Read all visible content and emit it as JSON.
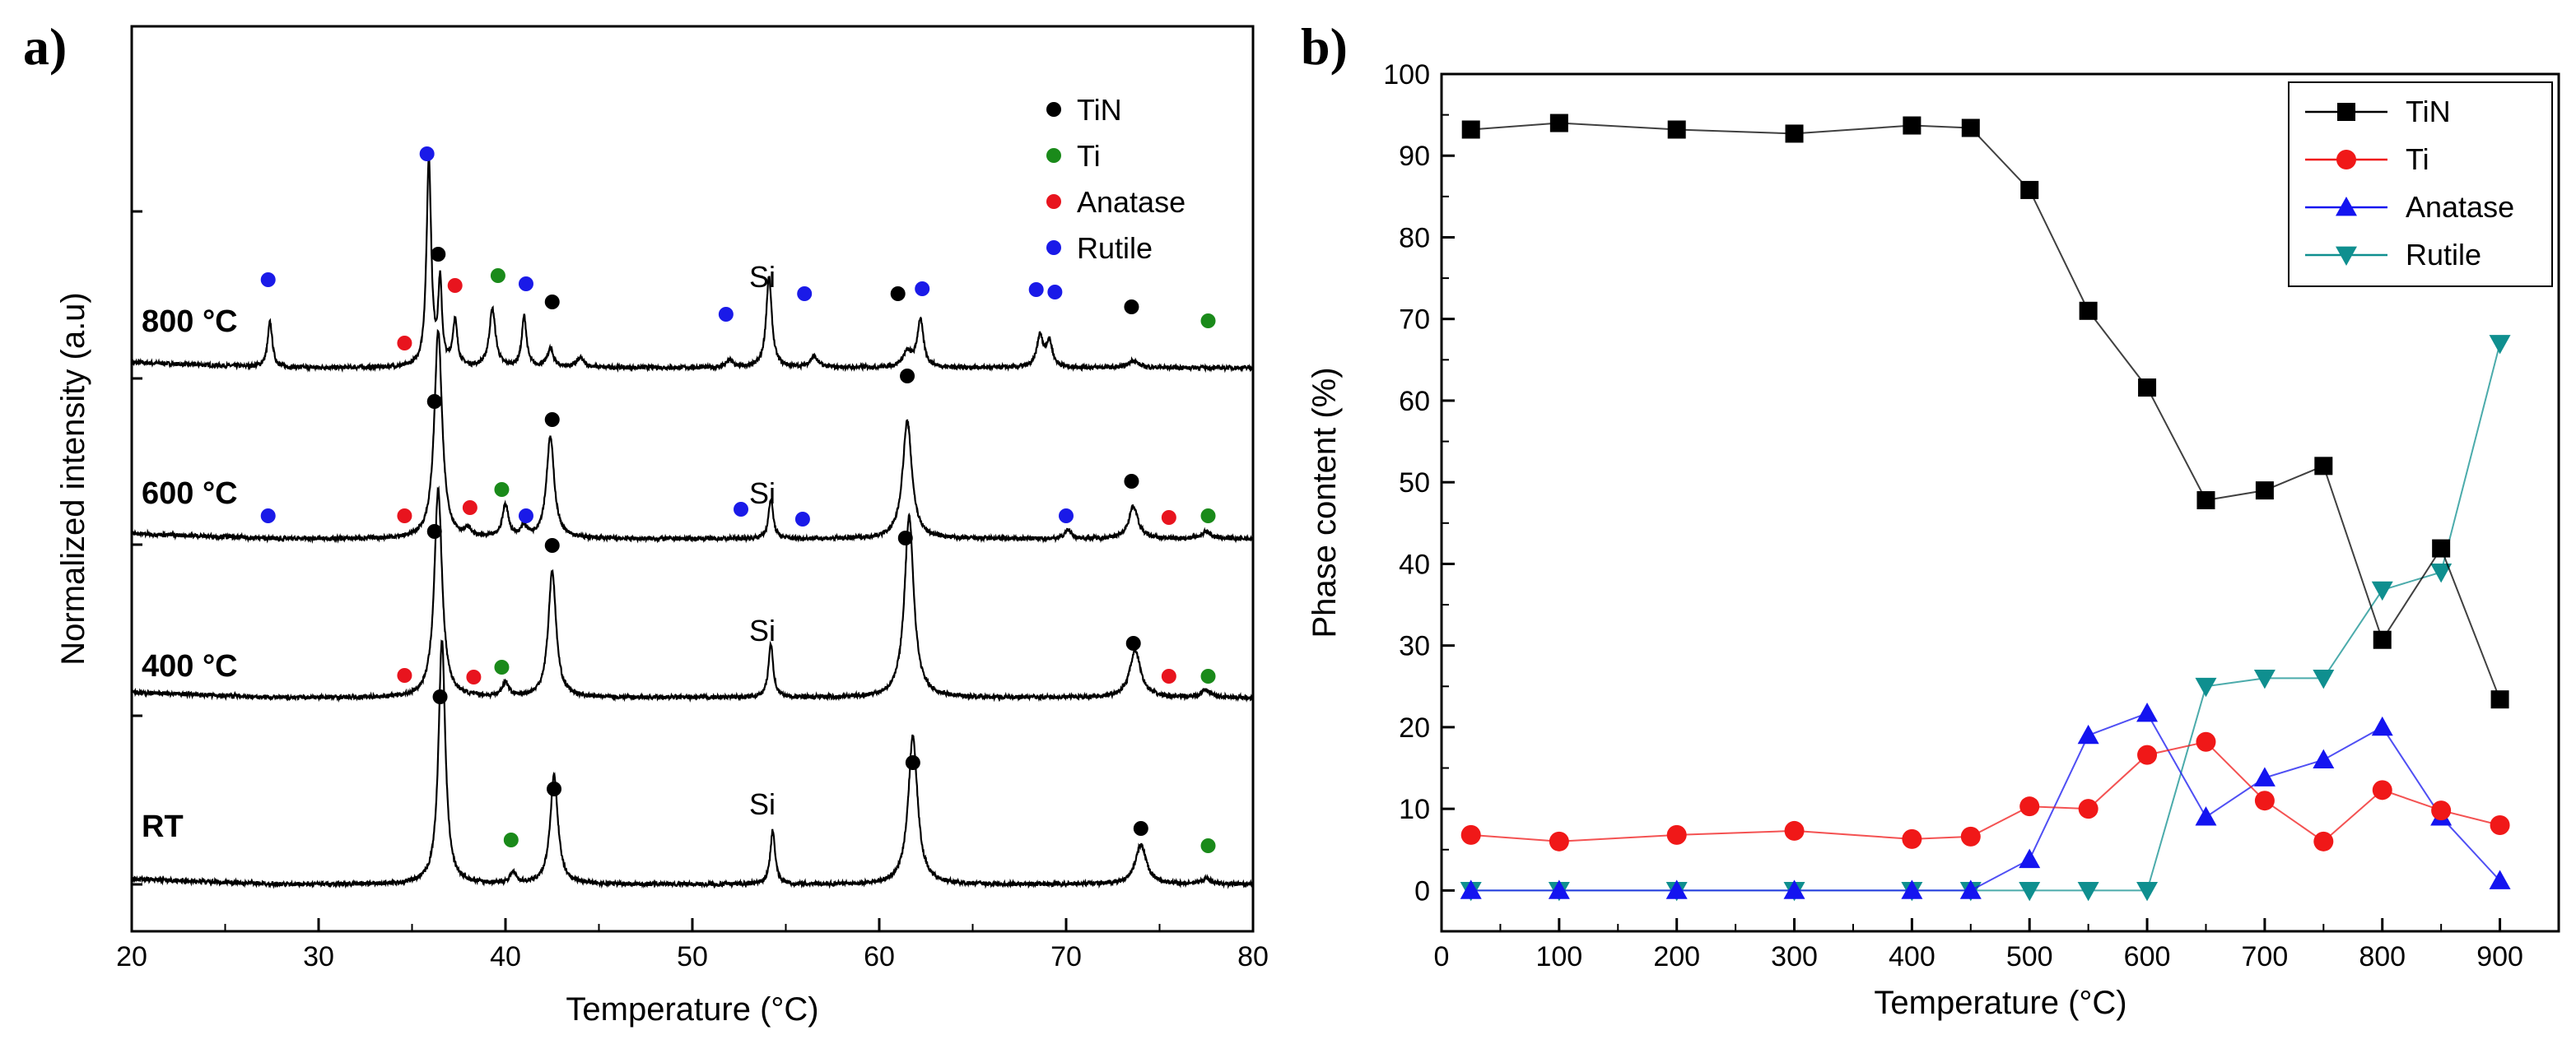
{
  "chart_data": [
    {
      "id": "a",
      "panel_label": "a)",
      "type": "line",
      "subtype": "xrd-pattern",
      "xlabel": "Temperature (°C)",
      "ylabel": "Normalized intensity (a.u)",
      "xlim": [
        20,
        80
      ],
      "xticks": [
        20,
        30,
        40,
        50,
        60,
        70,
        80
      ],
      "legend": {
        "placement": "top-right",
        "entries": [
          {
            "label": "TiN",
            "color": "#000000"
          },
          {
            "label": "Ti",
            "color": "#1a8a1a"
          },
          {
            "label": "Anatase",
            "color": "#e8141e"
          },
          {
            "label": "Rutile",
            "color": "#1a1ae8"
          }
        ]
      },
      "traces": [
        {
          "label": "800 °C",
          "si_label": "Si",
          "peaks": [
            {
              "x": 27.4,
              "h": 0.25,
              "w": 0.15
            },
            {
              "x": 35.9,
              "h": 1.15,
              "w": 0.15
            },
            {
              "x": 36.5,
              "h": 0.45,
              "w": 0.12
            },
            {
              "x": 37.3,
              "h": 0.25,
              "w": 0.15
            },
            {
              "x": 39.3,
              "h": 0.32,
              "w": 0.2
            },
            {
              "x": 41.0,
              "h": 0.28,
              "w": 0.15
            },
            {
              "x": 42.4,
              "h": 0.1,
              "w": 0.2
            },
            {
              "x": 44.0,
              "h": 0.05,
              "w": 0.25
            },
            {
              "x": 52.0,
              "h": 0.04,
              "w": 0.2
            },
            {
              "x": 54.1,
              "h": 0.5,
              "w": 0.18
            },
            {
              "x": 56.5,
              "h": 0.06,
              "w": 0.25
            },
            {
              "x": 61.5,
              "h": 0.08,
              "w": 0.3
            },
            {
              "x": 62.2,
              "h": 0.26,
              "w": 0.2
            },
            {
              "x": 68.6,
              "h": 0.17,
              "w": 0.2
            },
            {
              "x": 69.1,
              "h": 0.14,
              "w": 0.2
            },
            {
              "x": 73.6,
              "h": 0.04,
              "w": 0.3
            }
          ],
          "markers": [
            {
              "x": 27.3,
              "phase": "Rutile"
            },
            {
              "x": 34.6,
              "phase": "Anatase"
            },
            {
              "x": 35.8,
              "phase": "Rutile"
            },
            {
              "x": 36.4,
              "phase": "TiN"
            },
            {
              "x": 37.3,
              "phase": "Anatase"
            },
            {
              "x": 39.6,
              "phase": "Ti"
            },
            {
              "x": 41.1,
              "phase": "Rutile"
            },
            {
              "x": 42.5,
              "phase": "TiN"
            },
            {
              "x": 51.8,
              "phase": "Rutile"
            },
            {
              "x": 56.0,
              "phase": "Rutile"
            },
            {
              "x": 61.0,
              "phase": "TiN"
            },
            {
              "x": 62.3,
              "phase": "Rutile"
            },
            {
              "x": 68.4,
              "phase": "Rutile"
            },
            {
              "x": 69.4,
              "phase": "Rutile"
            },
            {
              "x": 73.5,
              "phase": "TiN"
            },
            {
              "x": 77.6,
              "phase": "Ti"
            }
          ]
        },
        {
          "label": "600 °C",
          "si_label": "Si",
          "peaks": [
            {
              "x": 36.4,
              "h": 1.15,
              "w": 0.25
            },
            {
              "x": 38.0,
              "h": 0.04,
              "w": 0.2
            },
            {
              "x": 40.0,
              "h": 0.18,
              "w": 0.2
            },
            {
              "x": 41.0,
              "h": 0.06,
              "w": 0.2
            },
            {
              "x": 42.4,
              "h": 0.56,
              "w": 0.25
            },
            {
              "x": 54.2,
              "h": 0.22,
              "w": 0.15
            },
            {
              "x": 61.5,
              "h": 0.65,
              "w": 0.3
            },
            {
              "x": 70.1,
              "h": 0.05,
              "w": 0.2
            },
            {
              "x": 73.6,
              "h": 0.18,
              "w": 0.3
            },
            {
              "x": 77.5,
              "h": 0.04,
              "w": 0.3
            }
          ],
          "markers": [
            {
              "x": 27.3,
              "phase": "Rutile"
            },
            {
              "x": 34.6,
              "phase": "Anatase"
            },
            {
              "x": 36.2,
              "phase": "TiN"
            },
            {
              "x": 38.1,
              "phase": "Anatase"
            },
            {
              "x": 39.8,
              "phase": "Ti"
            },
            {
              "x": 41.1,
              "phase": "Rutile"
            },
            {
              "x": 42.5,
              "phase": "TiN"
            },
            {
              "x": 52.6,
              "phase": "Rutile"
            },
            {
              "x": 55.9,
              "phase": "Rutile"
            },
            {
              "x": 61.5,
              "phase": "TiN"
            },
            {
              "x": 70.0,
              "phase": "Rutile"
            },
            {
              "x": 73.5,
              "phase": "TiN"
            },
            {
              "x": 75.5,
              "phase": "Anatase"
            },
            {
              "x": 77.6,
              "phase": "Ti"
            }
          ]
        },
        {
          "label": "400 °C",
          "si_label": "Si",
          "peaks": [
            {
              "x": 36.4,
              "h": 1.15,
              "w": 0.25
            },
            {
              "x": 40.0,
              "h": 0.08,
              "w": 0.2
            },
            {
              "x": 42.5,
              "h": 0.7,
              "w": 0.25
            },
            {
              "x": 54.2,
              "h": 0.3,
              "w": 0.15
            },
            {
              "x": 61.6,
              "h": 1.0,
              "w": 0.3
            },
            {
              "x": 73.7,
              "h": 0.26,
              "w": 0.35
            },
            {
              "x": 77.5,
              "h": 0.04,
              "w": 0.3
            }
          ],
          "markers": [
            {
              "x": 34.6,
              "phase": "Anatase"
            },
            {
              "x": 36.2,
              "phase": "TiN"
            },
            {
              "x": 38.3,
              "phase": "Anatase"
            },
            {
              "x": 39.8,
              "phase": "Ti"
            },
            {
              "x": 42.5,
              "phase": "TiN"
            },
            {
              "x": 61.4,
              "phase": "TiN"
            },
            {
              "x": 73.6,
              "phase": "TiN"
            },
            {
              "x": 75.5,
              "phase": "Anatase"
            },
            {
              "x": 77.6,
              "phase": "Ti"
            }
          ]
        },
        {
          "label": "RT",
          "si_label": "Si",
          "peaks": [
            {
              "x": 36.6,
              "h": 1.35,
              "w": 0.22
            },
            {
              "x": 40.4,
              "h": 0.06,
              "w": 0.2
            },
            {
              "x": 42.6,
              "h": 0.6,
              "w": 0.25
            },
            {
              "x": 54.3,
              "h": 0.3,
              "w": 0.15
            },
            {
              "x": 61.8,
              "h": 0.82,
              "w": 0.3
            },
            {
              "x": 74.0,
              "h": 0.22,
              "w": 0.35
            },
            {
              "x": 77.5,
              "h": 0.03,
              "w": 0.3
            }
          ],
          "markers": [
            {
              "x": 36.5,
              "phase": "TiN"
            },
            {
              "x": 40.3,
              "phase": "Ti"
            },
            {
              "x": 42.6,
              "phase": "TiN"
            },
            {
              "x": 61.8,
              "phase": "TiN"
            },
            {
              "x": 74.0,
              "phase": "TiN"
            },
            {
              "x": 77.6,
              "phase": "Ti"
            }
          ]
        }
      ]
    },
    {
      "id": "b",
      "panel_label": "b)",
      "type": "line",
      "xlabel": "Temperature (°C)",
      "ylabel": "Phase content (%)",
      "xlim": [
        0,
        950
      ],
      "ylim": [
        -5,
        100
      ],
      "xticks": [
        0,
        100,
        200,
        300,
        400,
        500,
        600,
        700,
        800,
        900
      ],
      "yticks": [
        0,
        10,
        20,
        30,
        40,
        50,
        60,
        70,
        80,
        90,
        100
      ],
      "legend": {
        "placement": "top-right"
      },
      "x": [
        25,
        100,
        200,
        300,
        400,
        450,
        500,
        550,
        600,
        650,
        700,
        750,
        800,
        850,
        900
      ],
      "series": [
        {
          "name": "TiN",
          "color": "#000000",
          "marker": "square",
          "values": [
            93.2,
            94.0,
            93.2,
            92.7,
            93.7,
            93.4,
            85.8,
            71.0,
            61.6,
            47.8,
            49.0,
            52.0,
            30.7,
            41.9,
            23.4
          ]
        },
        {
          "name": "Ti",
          "color": "#f01818",
          "marker": "circle",
          "values": [
            6.8,
            6.0,
            6.8,
            7.3,
            6.3,
            6.6,
            10.3,
            10.0,
            16.6,
            18.2,
            11.0,
            6.0,
            12.3,
            9.8,
            8.0
          ]
        },
        {
          "name": "Anatase",
          "color": "#1414f0",
          "marker": "triangle-up",
          "values": [
            0,
            0,
            0,
            0,
            0,
            0,
            3.8,
            19.0,
            21.7,
            9.0,
            13.8,
            16.0,
            20.0,
            9.0,
            1.2
          ]
        },
        {
          "name": "Rutile",
          "color": "#0f8f8f",
          "marker": "triangle-down",
          "values": [
            0,
            0,
            0,
            0,
            0,
            0,
            0,
            0,
            0,
            25.0,
            26.0,
            26.0,
            36.8,
            39.0,
            67.0
          ]
        }
      ]
    }
  ]
}
